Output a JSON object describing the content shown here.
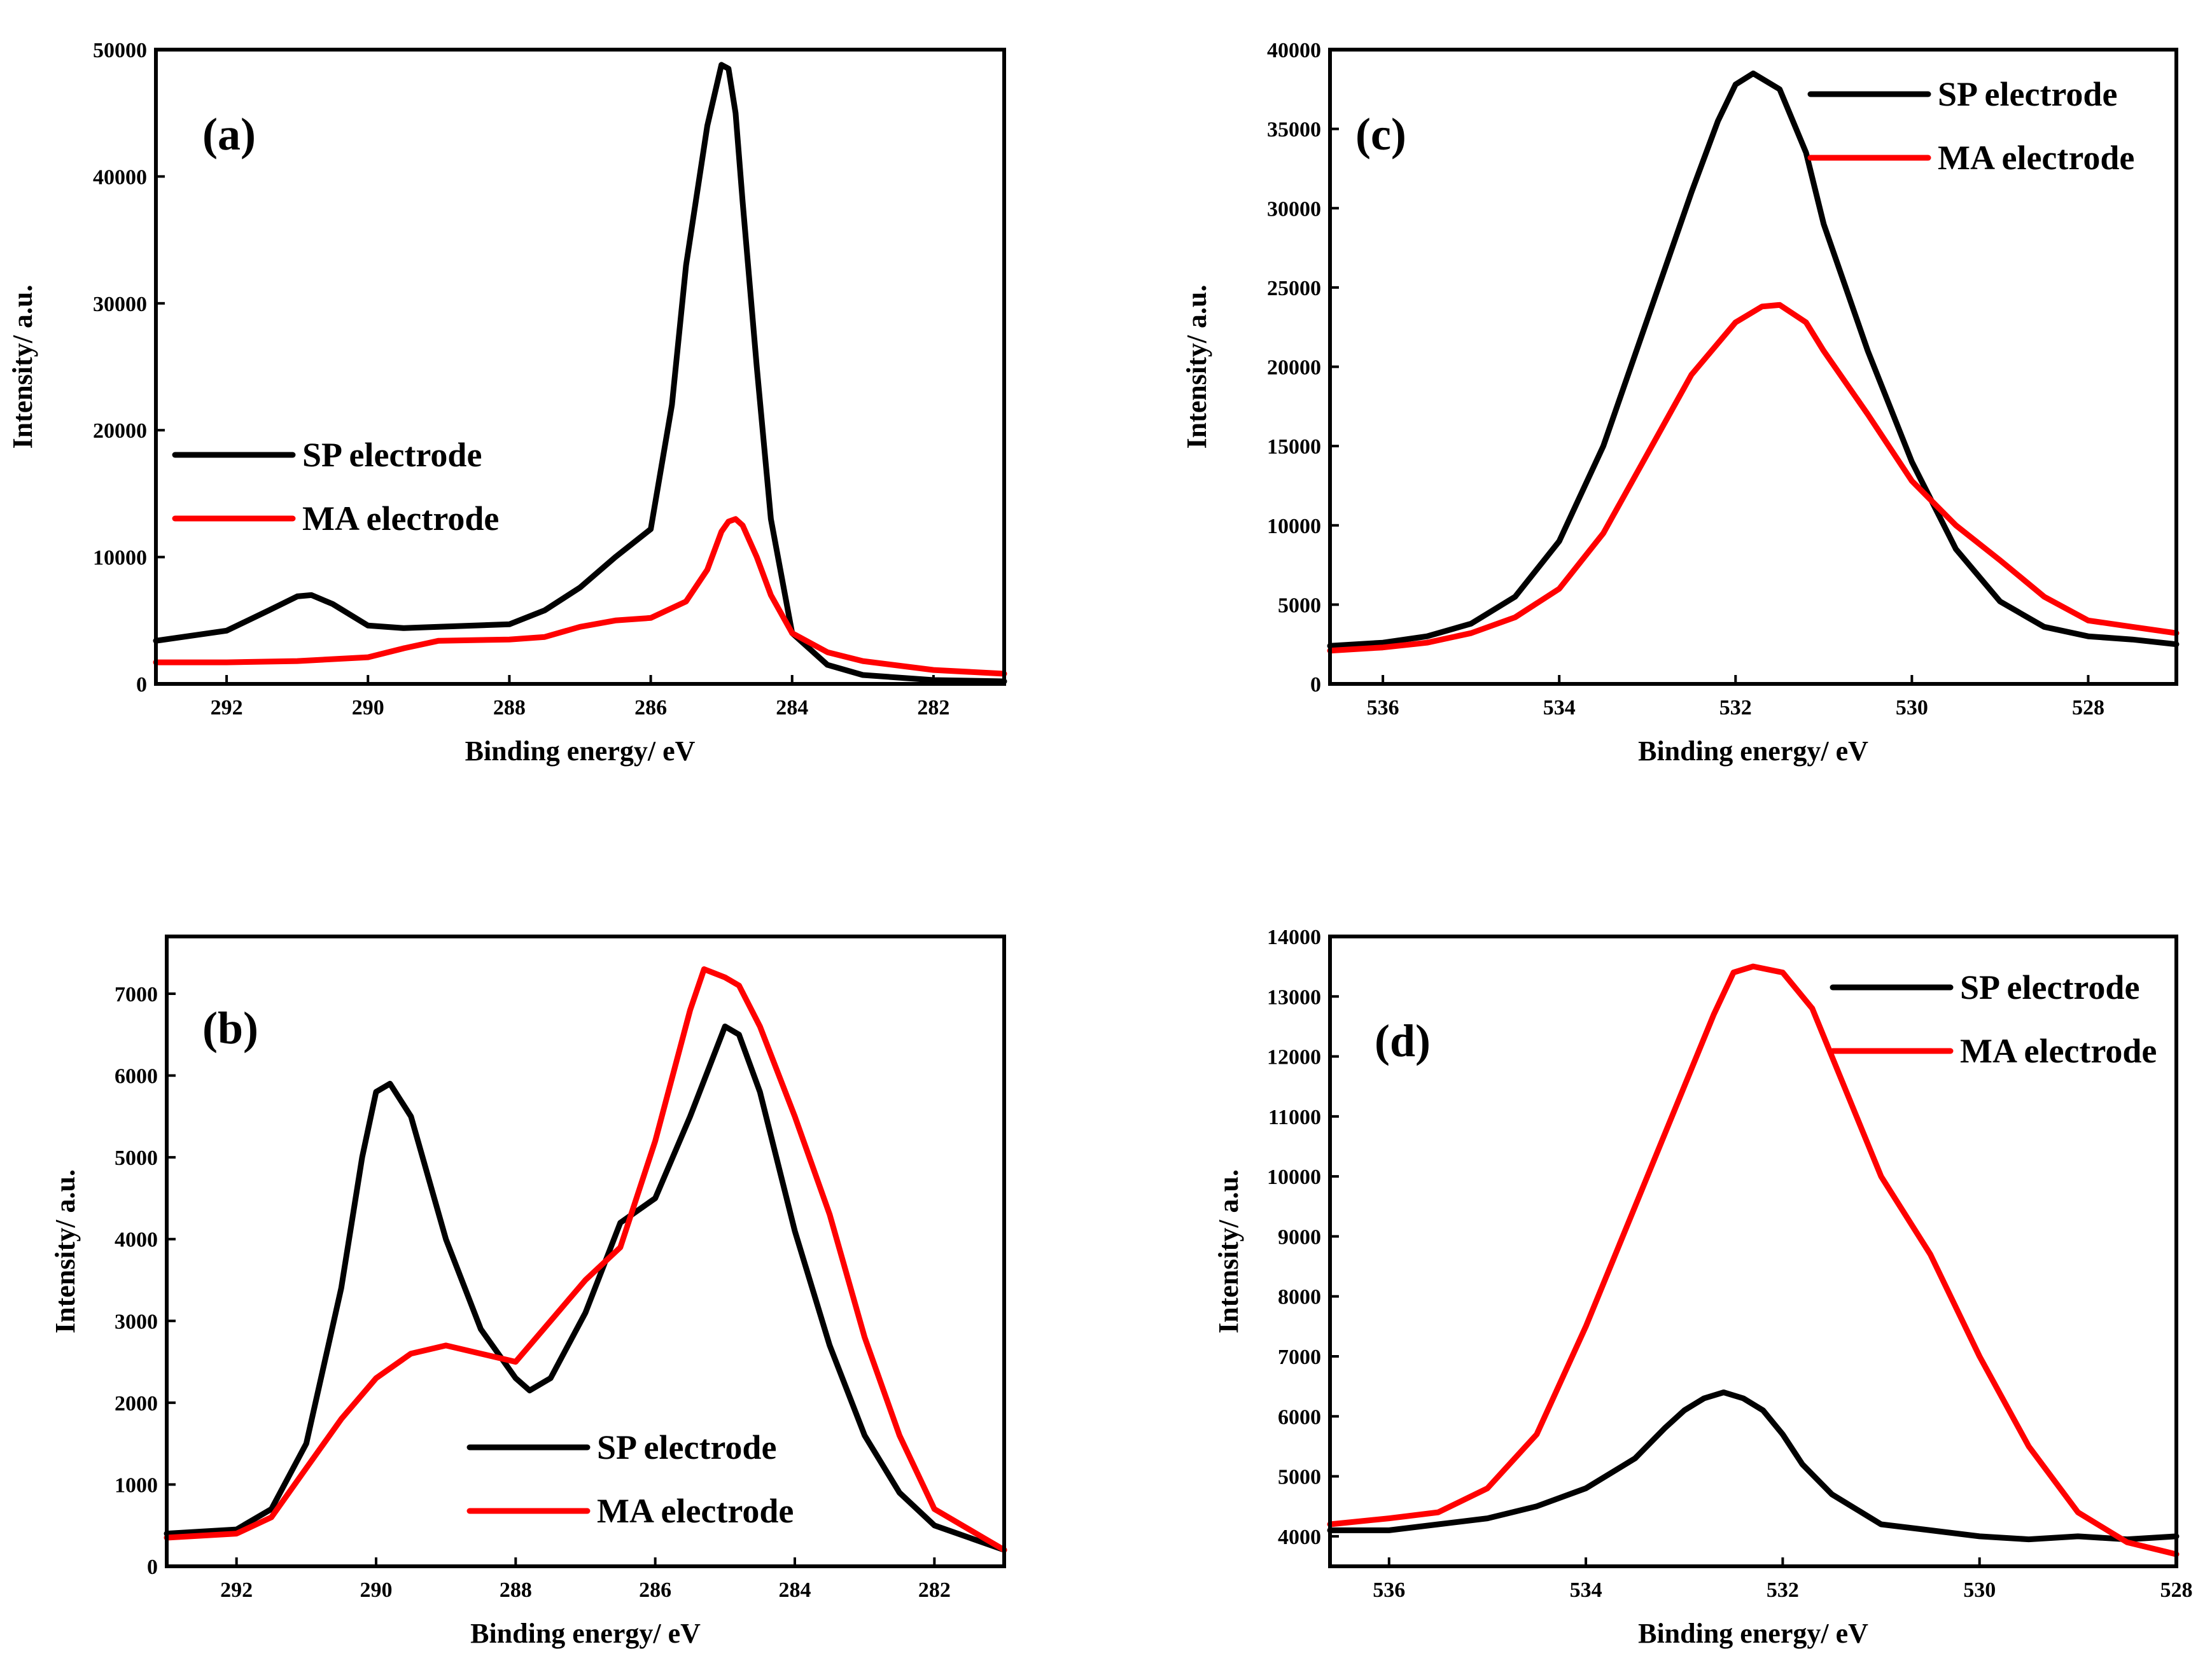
{
  "chart_data": [
    {
      "id": "a",
      "type": "line",
      "panel_label": "(a)",
      "xlabel": "Binding energy/ eV",
      "ylabel": "Intensity/ a.u.",
      "xlim": [
        293,
        281
      ],
      "ylim": [
        0,
        50000
      ],
      "xticks": [
        292,
        290,
        288,
        286,
        284,
        282
      ],
      "yticks": [
        0,
        10000,
        20000,
        30000,
        40000,
        50000
      ],
      "legend_position": "middle-left",
      "series": [
        {
          "name": "SP electrode",
          "color": "#000000",
          "x": [
            293,
            292,
            291.4,
            291,
            290.8,
            290.5,
            290,
            289.5,
            289,
            288,
            287.5,
            287,
            286.5,
            286,
            285.7,
            285.5,
            285.2,
            285,
            284.9,
            284.8,
            284.7,
            284.5,
            284.3,
            284,
            283.5,
            283,
            282,
            281
          ],
          "y": [
            3400,
            4200,
            5800,
            6900,
            7000,
            6300,
            4600,
            4400,
            4500,
            4700,
            5800,
            7600,
            10000,
            12200,
            22000,
            33000,
            44000,
            48800,
            48500,
            45000,
            38000,
            25000,
            13000,
            4000,
            1500,
            700,
            300,
            200
          ]
        },
        {
          "name": "MA electrode",
          "color": "#ff0000",
          "x": [
            293,
            292,
            291,
            290,
            289.5,
            289,
            288,
            287.5,
            287,
            286.5,
            286,
            285.5,
            285.2,
            285,
            284.9,
            284.8,
            284.7,
            284.5,
            284.3,
            284,
            283.5,
            283,
            282,
            281
          ],
          "y": [
            1700,
            1700,
            1800,
            2100,
            2800,
            3400,
            3500,
            3700,
            4500,
            5000,
            5200,
            6500,
            9000,
            12000,
            12800,
            13000,
            12500,
            10000,
            7000,
            4000,
            2500,
            1800,
            1100,
            800
          ]
        }
      ]
    },
    {
      "id": "c",
      "type": "line",
      "panel_label": "(c)",
      "xlabel": "Binding energy/ eV",
      "ylabel": "Intensity/ a.u.",
      "xlim": [
        536.6,
        527
      ],
      "ylim": [
        0,
        40000
      ],
      "xticks": [
        536,
        534,
        532,
        530,
        528
      ],
      "yticks": [
        0,
        5000,
        10000,
        15000,
        20000,
        25000,
        30000,
        35000,
        40000
      ],
      "legend_position": "top-right",
      "series": [
        {
          "name": "SP electrode",
          "color": "#000000",
          "x": [
            536.6,
            536,
            535.5,
            535,
            534.5,
            534,
            533.5,
            533,
            532.5,
            532.2,
            532,
            531.8,
            531.5,
            531.2,
            531,
            530.5,
            530,
            529.5,
            529,
            528.5,
            528,
            527.5,
            527
          ],
          "y": [
            2400,
            2600,
            3000,
            3800,
            5500,
            9000,
            15000,
            23000,
            31000,
            35500,
            37800,
            38500,
            37500,
            33500,
            29000,
            21000,
            14000,
            8500,
            5200,
            3600,
            3000,
            2800,
            2500
          ]
        },
        {
          "name": "MA electrode",
          "color": "#ff0000",
          "x": [
            536.6,
            536,
            535.5,
            535,
            534.5,
            534,
            533.5,
            533,
            532.5,
            532,
            531.7,
            531.5,
            531.2,
            531,
            530.5,
            530,
            529.5,
            529,
            528.5,
            528,
            527.5,
            527
          ],
          "y": [
            2100,
            2300,
            2600,
            3200,
            4200,
            6000,
            9500,
            14500,
            19500,
            22800,
            23800,
            23900,
            22800,
            21000,
            17000,
            12800,
            10000,
            7800,
            5500,
            4000,
            3600,
            3200
          ]
        }
      ]
    },
    {
      "id": "b",
      "type": "line",
      "panel_label": "(b)",
      "xlabel": "Binding energy/ eV",
      "ylabel": "Intensity/ a.u.",
      "xlim": [
        293,
        281
      ],
      "ylim": [
        0,
        7700
      ],
      "xticks": [
        292,
        290,
        288,
        286,
        284,
        282
      ],
      "yticks": [
        0,
        1000,
        2000,
        3000,
        4000,
        5000,
        6000,
        7000
      ],
      "legend_position": "bottom-center",
      "series": [
        {
          "name": "SP electrode",
          "color": "#000000",
          "x": [
            293,
            292,
            291.5,
            291,
            290.5,
            290.2,
            290,
            289.8,
            289.5,
            289,
            288.5,
            288,
            287.8,
            287.5,
            287,
            286.5,
            286,
            285.5,
            285,
            284.8,
            284.5,
            284,
            283.5,
            283,
            282.5,
            282,
            281
          ],
          "y": [
            400,
            450,
            700,
            1500,
            3400,
            5000,
            5800,
            5900,
            5500,
            4000,
            2900,
            2300,
            2150,
            2300,
            3100,
            4200,
            4500,
            5500,
            6600,
            6500,
            5800,
            4100,
            2700,
            1600,
            900,
            500,
            200
          ]
        },
        {
          "name": "MA electrode",
          "color": "#ff0000",
          "x": [
            293,
            292,
            291.5,
            291,
            290.5,
            290,
            289.5,
            289,
            288.5,
            288,
            287.5,
            287,
            286.5,
            286,
            285.5,
            285.3,
            285,
            284.8,
            284.5,
            284,
            283.5,
            283,
            282.5,
            282,
            281
          ],
          "y": [
            350,
            400,
            600,
            1200,
            1800,
            2300,
            2600,
            2700,
            2600,
            2500,
            3000,
            3500,
            3900,
            5200,
            6800,
            7300,
            7200,
            7100,
            6600,
            5500,
            4300,
            2800,
            1600,
            700,
            200
          ]
        }
      ]
    },
    {
      "id": "d",
      "type": "line",
      "panel_label": "(d)",
      "xlabel": "Binding energy/ eV",
      "ylabel": "Intensity/ a.u.",
      "xlim": [
        536.6,
        528
      ],
      "ylim": [
        3500,
        14000
      ],
      "xticks": [
        536,
        534,
        532,
        530,
        528
      ],
      "yticks": [
        4000,
        5000,
        6000,
        7000,
        8000,
        9000,
        10000,
        11000,
        12000,
        13000,
        14000
      ],
      "legend_position": "top-right",
      "series": [
        {
          "name": "SP electrode",
          "color": "#000000",
          "x": [
            536.6,
            536,
            535.5,
            535,
            534.5,
            534,
            533.5,
            533.2,
            533,
            532.8,
            532.6,
            532.4,
            532.2,
            532,
            531.8,
            531.5,
            531.2,
            531,
            530.5,
            530,
            529.5,
            529,
            528.5,
            528
          ],
          "y": [
            4100,
            4100,
            4200,
            4300,
            4500,
            4800,
            5300,
            5800,
            6100,
            6300,
            6400,
            6300,
            6100,
            5700,
            5200,
            4700,
            4400,
            4200,
            4100,
            4000,
            3950,
            4000,
            3950,
            4000
          ]
        },
        {
          "name": "MA electrode",
          "color": "#ff0000",
          "x": [
            536.6,
            536,
            535.5,
            535,
            534.5,
            534,
            533.5,
            533,
            532.7,
            532.5,
            532.3,
            532,
            531.7,
            531.5,
            531,
            530.5,
            530,
            529.5,
            529,
            528.5,
            528
          ],
          "y": [
            4200,
            4300,
            4400,
            4800,
            5700,
            7500,
            9500,
            11500,
            12700,
            13400,
            13500,
            13400,
            12800,
            12000,
            10000,
            8700,
            7000,
            5500,
            4400,
            3900,
            3700
          ]
        }
      ]
    }
  ]
}
